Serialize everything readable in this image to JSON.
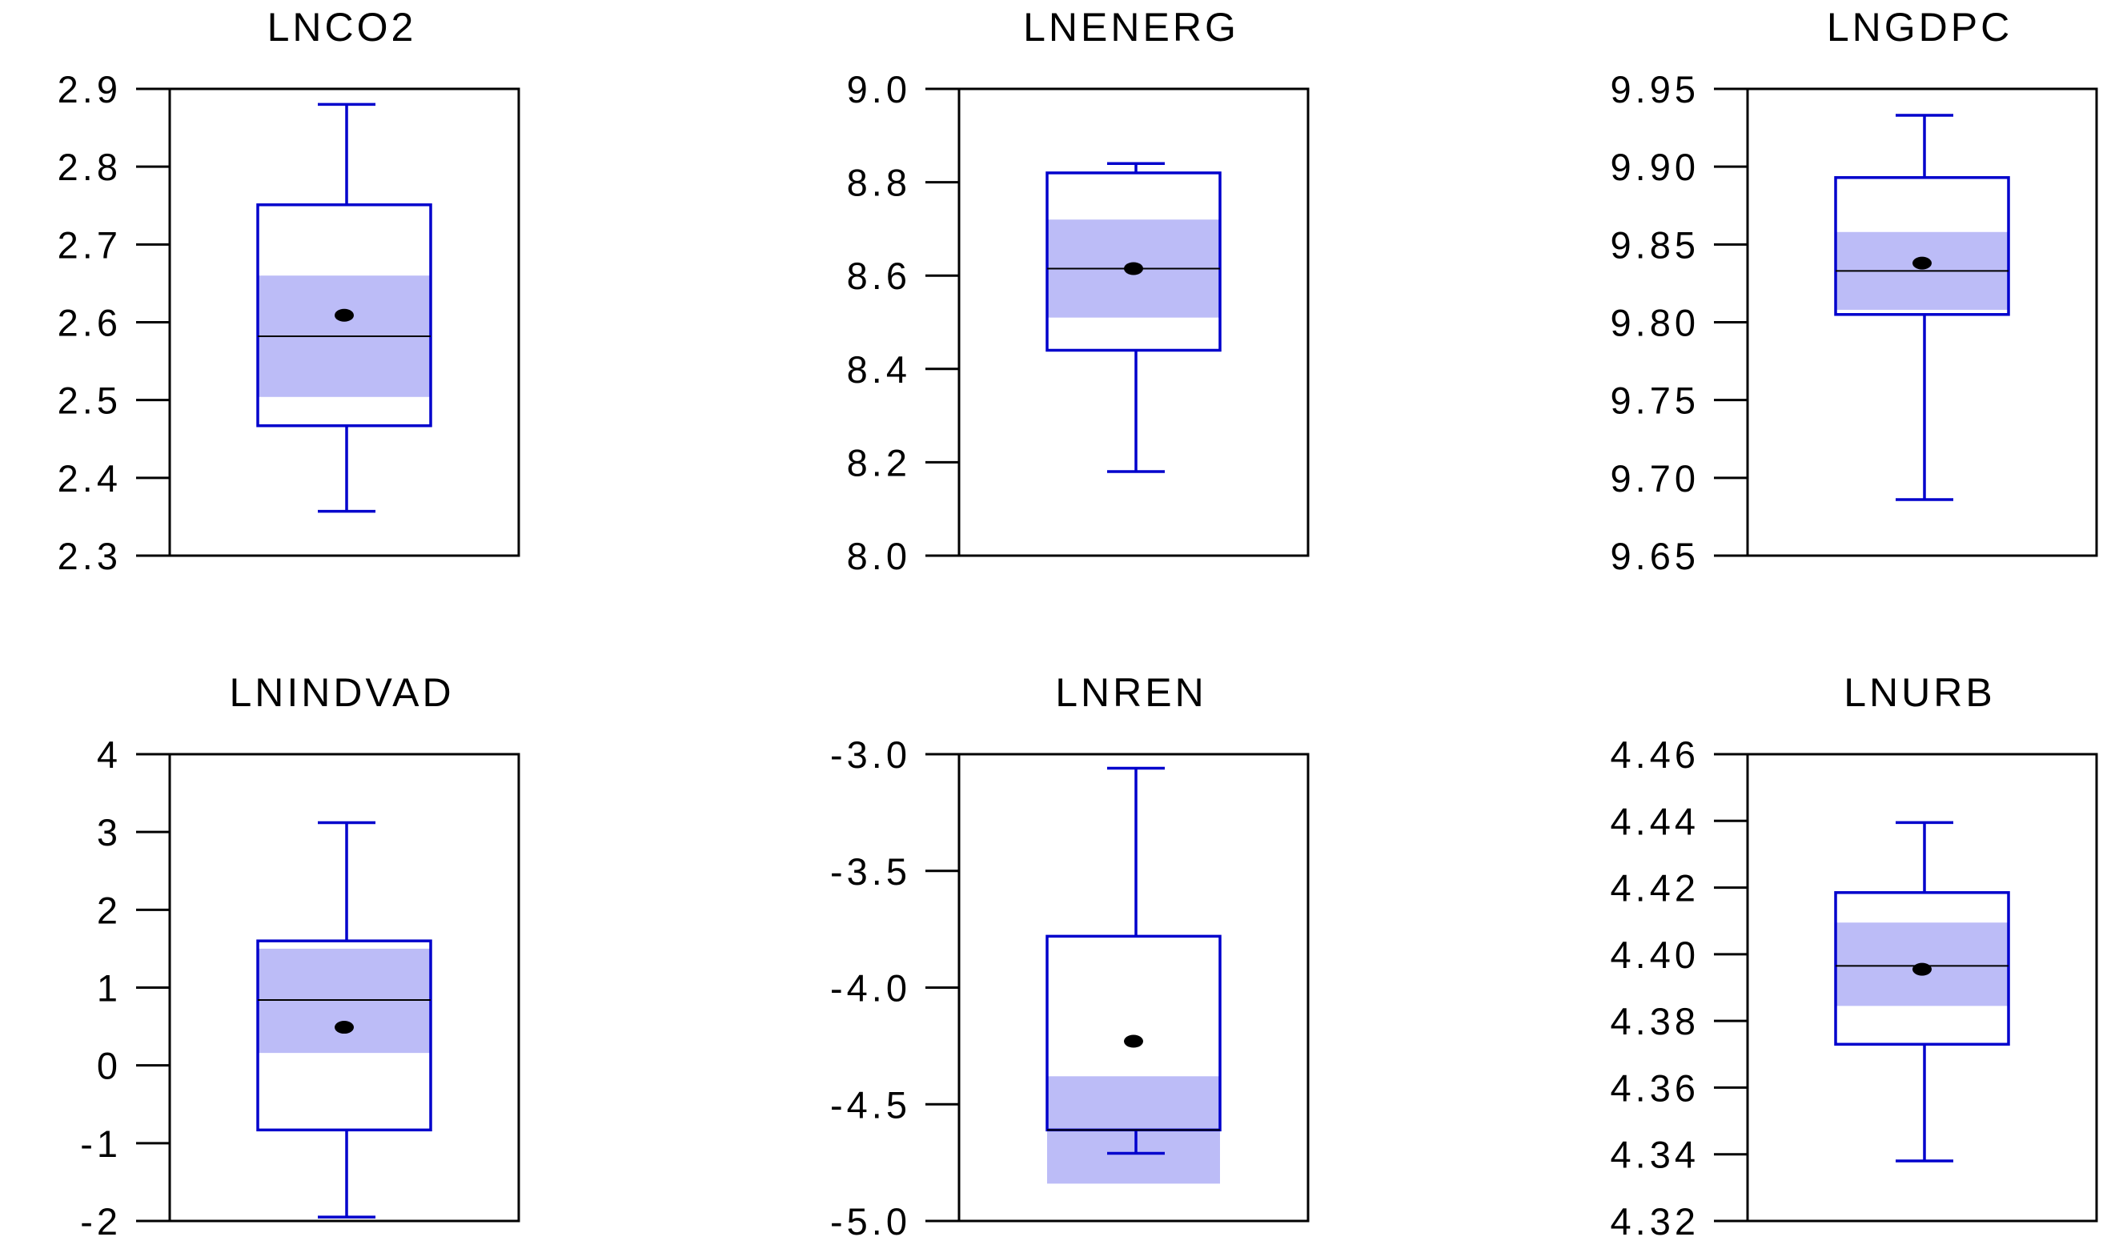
{
  "colors": {
    "box": "#0000cc",
    "notch": "#bcbcf7",
    "axis": "#000000",
    "mean": "#000000",
    "median": "#000000",
    "background": "#ffffff"
  },
  "chart_data": [
    {
      "type": "boxplot",
      "title": "LNCO2",
      "ylim": [
        2.3,
        2.9
      ],
      "yticks": [
        "2.3",
        "2.4",
        "2.5",
        "2.6",
        "2.7",
        "2.8",
        "2.9"
      ],
      "box": {
        "whisker_low": 2.357,
        "q1": 2.467,
        "median": 2.582,
        "q3": 2.751,
        "whisker_high": 2.88,
        "mean": 2.609,
        "ci_low": 2.504,
        "ci_high": 2.66
      }
    },
    {
      "type": "boxplot",
      "title": "LNENERG",
      "ylim": [
        8.0,
        9.0
      ],
      "yticks": [
        "8.0",
        "8.2",
        "8.4",
        "8.6",
        "8.8",
        "9.0"
      ],
      "box": {
        "whisker_low": 8.18,
        "q1": 8.44,
        "median": 8.615,
        "q3": 8.82,
        "whisker_high": 8.84,
        "mean": 8.615,
        "ci_low": 8.51,
        "ci_high": 8.72
      }
    },
    {
      "type": "boxplot",
      "title": "LNGDPC",
      "ylim": [
        9.65,
        9.95
      ],
      "yticks": [
        "9.65",
        "9.70",
        "9.75",
        "9.80",
        "9.85",
        "9.90",
        "9.95"
      ],
      "box": {
        "whisker_low": 9.686,
        "q1": 9.805,
        "median": 9.833,
        "q3": 9.893,
        "whisker_high": 9.933,
        "mean": 9.838,
        "ci_low": 9.808,
        "ci_high": 9.858
      }
    },
    {
      "type": "boxplot",
      "title": "LNINDVAD",
      "ylim": [
        -2,
        4
      ],
      "yticks": [
        "-2",
        "-1",
        "0",
        "1",
        "2",
        "3",
        "4"
      ],
      "box": {
        "whisker_low": -1.95,
        "q1": -0.83,
        "median": 0.84,
        "q3": 1.6,
        "whisker_high": 3.12,
        "mean": 0.49,
        "ci_low": 0.16,
        "ci_high": 1.5
      }
    },
    {
      "type": "boxplot",
      "title": "LNREN",
      "ylim": [
        -5.0,
        -3.0
      ],
      "yticks": [
        "-5.0",
        "-4.5",
        "-4.0",
        "-3.5",
        "-3.0"
      ],
      "box": {
        "whisker_low": -4.71,
        "q1": -4.61,
        "median": -4.61,
        "q3": -3.78,
        "whisker_high": -3.06,
        "mean": -4.23,
        "ci_low": -4.84,
        "ci_high": -4.38
      }
    },
    {
      "type": "boxplot",
      "title": "LNURB",
      "ylim": [
        4.32,
        4.46
      ],
      "yticks": [
        "4.32",
        "4.34",
        "4.36",
        "4.38",
        "4.40",
        "4.42",
        "4.44",
        "4.46"
      ],
      "box": {
        "whisker_low": 4.338,
        "q1": 4.373,
        "median": 4.3965,
        "q3": 4.4185,
        "whisker_high": 4.4395,
        "mean": 4.3955,
        "ci_low": 4.3845,
        "ci_high": 4.4095
      }
    }
  ]
}
